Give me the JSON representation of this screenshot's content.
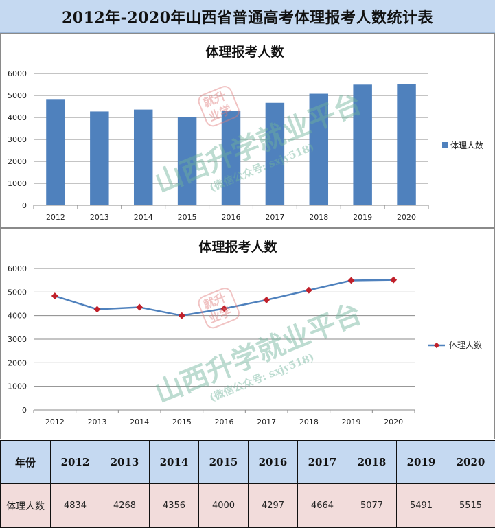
{
  "page_title": "2012年-2020年山西省普通高考体理报考人数统计表",
  "watermark": {
    "main": "山西升学就业平台",
    "sub": "(微信公众号: sxjy518)",
    "stamp": [
      "就升",
      "业学"
    ]
  },
  "colors": {
    "bar": "#4f81bd",
    "line": "#4f81bd",
    "marker": "#c0202a",
    "header_bg": "#c5d9f1",
    "value_bg": "#f2dcdb"
  },
  "chart_data": [
    {
      "type": "bar",
      "title": "体理报考人数",
      "categories": [
        "2012",
        "2013",
        "2014",
        "2015",
        "2016",
        "2017",
        "2018",
        "2019",
        "2020"
      ],
      "series": [
        {
          "name": "体理人数",
          "values": [
            4834,
            4268,
            4356,
            4000,
            4297,
            4664,
            5077,
            5491,
            5515
          ]
        }
      ],
      "yticks": [
        "0",
        "1000",
        "2000",
        "3000",
        "4000",
        "5000",
        "6000"
      ],
      "ylim": [
        0,
        6000
      ],
      "grid": true,
      "legend": "right"
    },
    {
      "type": "line",
      "title": "体理报考人数",
      "categories": [
        "2012",
        "2013",
        "2014",
        "2015",
        "2016",
        "2017",
        "2018",
        "2019",
        "2020"
      ],
      "series": [
        {
          "name": "体理人数",
          "values": [
            4834,
            4268,
            4356,
            4000,
            4297,
            4664,
            5077,
            5491,
            5515
          ]
        }
      ],
      "yticks": [
        "0",
        "1000",
        "2000",
        "3000",
        "4000",
        "5000",
        "6000"
      ],
      "ylim": [
        0,
        6000
      ],
      "grid": true,
      "legend": "right"
    }
  ],
  "table": {
    "header_label": "年份",
    "row_label": "体理人数",
    "years": [
      "2012",
      "2013",
      "2014",
      "2015",
      "2016",
      "2017",
      "2018",
      "2019",
      "2020"
    ],
    "values": [
      "4834",
      "4268",
      "4356",
      "4000",
      "4297",
      "4664",
      "5077",
      "5491",
      "5515"
    ]
  }
}
